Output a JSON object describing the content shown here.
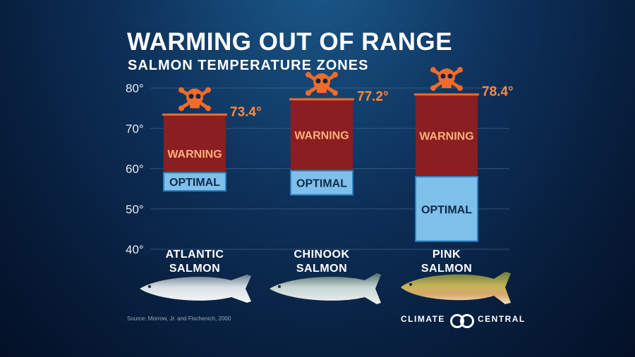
{
  "title": "WARMING OUT OF RANGE",
  "subtitle": "SALMON TEMPERATURE ZONES",
  "source": "Source: Morrow, Jr. and Fischenich, 2000",
  "logo": {
    "left": "CLIMATE",
    "right": "CENTRAL"
  },
  "colors": {
    "warning": "#8a1e22",
    "optimal": "#7fc0ea",
    "max_line": "#f26b2a",
    "skull": "#f26b2a"
  },
  "chart_data": {
    "type": "bar",
    "title": "WARMING OUT OF RANGE",
    "subtitle": "SALMON TEMPERATURE ZONES",
    "y_unit": "°F",
    "ylim": [
      40,
      80
    ],
    "y_ticks": [
      40,
      50,
      60,
      70,
      80
    ],
    "y_tick_labels": [
      "40°",
      "50°",
      "60°",
      "70°",
      "80°"
    ],
    "grid": true,
    "categories": [
      "ATLANTIC SALMON",
      "CHINOOK SALMON",
      "PINK SALMON"
    ],
    "category_lines": [
      [
        "ATLANTIC",
        "SALMON"
      ],
      [
        "CHINOOK",
        "SALMON"
      ],
      [
        "PINK",
        "SALMON"
      ]
    ],
    "zone_labels": {
      "warning": "WARNING",
      "optimal": "OPTIMAL"
    },
    "bars": [
      {
        "optimal": [
          54.5,
          59
        ],
        "warning": [
          59,
          73.4
        ],
        "max": 73.4,
        "max_label": "73.4°"
      },
      {
        "optimal": [
          53.5,
          59.5
        ],
        "warning": [
          59.5,
          77.2
        ],
        "max": 77.2,
        "max_label": "77.2°"
      },
      {
        "optimal": [
          42,
          58
        ],
        "warning": [
          58,
          78.4
        ],
        "max": 78.4,
        "max_label": "78.4°"
      }
    ]
  }
}
